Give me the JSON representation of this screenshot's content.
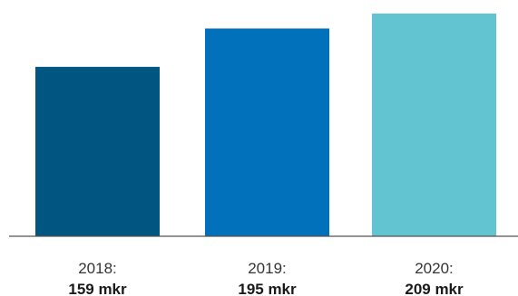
{
  "chart_data": {
    "type": "bar",
    "categories": [
      "2018:",
      "2019:",
      "2020:"
    ],
    "values": [
      159,
      195,
      209
    ],
    "value_labels": [
      "159 mkr",
      "195 mkr",
      "209 mkr"
    ],
    "colors": [
      "#005581",
      "#0071BA",
      "#62C3D1"
    ],
    "axis_color": "#555555",
    "grid": false,
    "ylim": [
      0,
      209
    ]
  }
}
